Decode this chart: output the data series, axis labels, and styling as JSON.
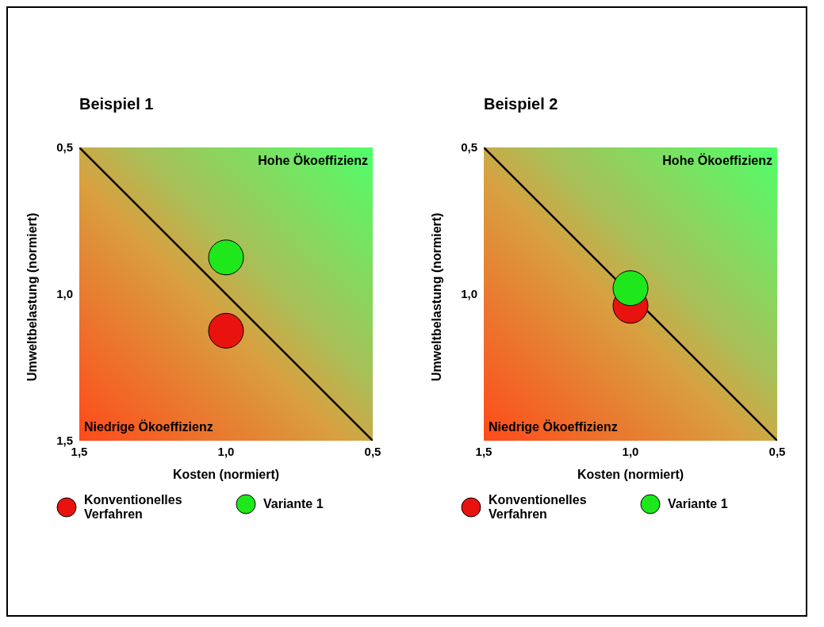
{
  "chart_data": [
    {
      "type": "scatter",
      "title": "Beispiel 1",
      "xlabel": "Kosten (normiert)",
      "ylabel": "Umweltbelastung (normiert)",
      "xlim": [
        1.5,
        0.5
      ],
      "ylim": [
        1.5,
        0.5
      ],
      "xticks": [
        {
          "value": 1.5,
          "label": "1,5"
        },
        {
          "value": 1.0,
          "label": "1,0"
        },
        {
          "value": 0.5,
          "label": "0,5"
        }
      ],
      "yticks": [
        {
          "value": 1.5,
          "label": "1,5"
        },
        {
          "value": 1.0,
          "label": "1,0"
        },
        {
          "value": 0.5,
          "label": "0,5"
        }
      ],
      "legend": "bottom",
      "grid": false,
      "annotations": [
        "Hohe Ökoeffizienz",
        "Niedrige Ökoeffizienz"
      ],
      "series": [
        {
          "type": "line",
          "color": "#000000",
          "x": [
            1.5,
            0.5
          ],
          "values": [
            0.5,
            1.5
          ]
        },
        {
          "name": "Konventionelles Verfahren",
          "color": "#e8130f",
          "marker": "circle",
          "x": [
            1.0
          ],
          "values": [
            1.125
          ]
        },
        {
          "name": "Variante 1",
          "color": "#1ee81b",
          "marker": "circle",
          "x": [
            1.0
          ],
          "values": [
            0.875
          ]
        }
      ]
    },
    {
      "type": "scatter",
      "title": "Beispiel 2",
      "xlabel": "Kosten (normiert)",
      "ylabel": "Umweltbelastung (normiert)",
      "xlim": [
        1.5,
        0.5
      ],
      "ylim": [
        1.5,
        0.5
      ],
      "xticks": [
        {
          "value": 1.5,
          "label": "1,5"
        },
        {
          "value": 1.0,
          "label": "1,0"
        },
        {
          "value": 0.5,
          "label": "0,5"
        }
      ],
      "yticks": [
        {
          "value": 1.0,
          "label": "1,0"
        },
        {
          "value": 0.5,
          "label": "0,5"
        }
      ],
      "legend": "bottom",
      "grid": false,
      "annotations": [
        "Hohe Ökoeffizienz",
        "Niedrige Ökoeffizienz"
      ],
      "series": [
        {
          "type": "line",
          "color": "#000000",
          "x": [
            1.5,
            0.5
          ],
          "values": [
            0.5,
            1.5
          ]
        },
        {
          "name": "Konventionelles Verfahren",
          "color": "#e8130f",
          "marker": "circle",
          "x": [
            1.0
          ],
          "values": [
            1.04
          ]
        },
        {
          "name": "Variante 1",
          "color": "#1ee81b",
          "marker": "circle",
          "x": [
            1.0
          ],
          "values": [
            0.98
          ]
        }
      ]
    }
  ]
}
